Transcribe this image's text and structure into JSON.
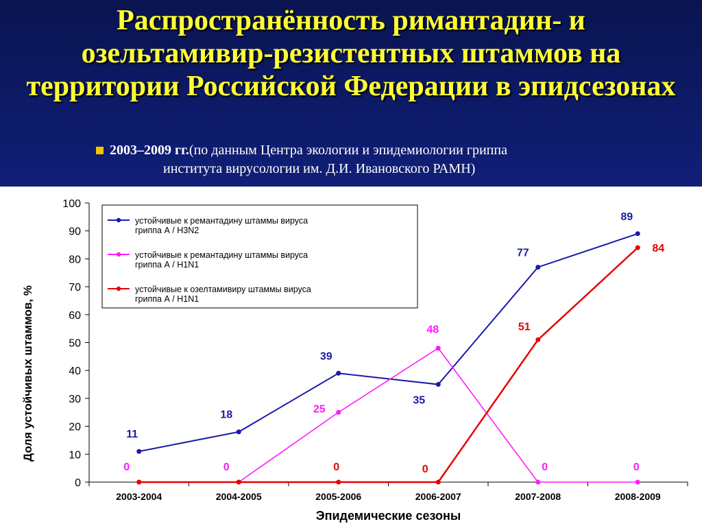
{
  "slide": {
    "title": "Распространённость римантадин- и озельтамивир-резистентных штаммов на территории Российской Федерации в эпидсезонах",
    "subtitle_bold": "2003–2009 гг.",
    "subtitle_line1": "(по данным Центра экологии и эпидемиологии гриппа",
    "subtitle_line2": "института вирусологии им. Д.И. Ивановского РАМН)"
  },
  "colors": {
    "header_bg": "#0d1a66",
    "title": "#ffff33",
    "bullet": "#f5c400"
  },
  "chart_data": {
    "type": "line",
    "xlabel": "Эпидемические сезоны",
    "ylabel": "Доля устойчивых штаммов, %",
    "ylim": [
      0,
      100
    ],
    "yticks": [
      0,
      10,
      20,
      30,
      40,
      50,
      60,
      70,
      80,
      90,
      100
    ],
    "grid": false,
    "legend_position": "top-left",
    "categories": [
      "2003-2004",
      "2004-2005",
      "2005-2006",
      "2006-2007",
      "2007-2008",
      "2008-2009"
    ],
    "series": [
      {
        "name": "устойчивые к ремантадину штаммы вируса гриппа А / H3N2",
        "legend_lines": [
          "устойчивые к ремантадину штаммы вируса",
          "гриппа А / H3N2"
        ],
        "color": "#1a1aa6",
        "values": [
          11,
          18,
          39,
          35,
          77,
          89
        ]
      },
      {
        "name": "устойчивые к ремантадину штаммы вируса гриппа А / H1N1",
        "legend_lines": [
          "устойчивые к ремантадину штаммы вируса",
          "гриппа А / H1N1"
        ],
        "color": "#ff1aff",
        "values": [
          0,
          0,
          25,
          48,
          0,
          0
        ]
      },
      {
        "name": "устойчивые к озелтамивиру штаммы вируса гриппа А / H1N1",
        "legend_lines": [
          "устойчивые к озелтамивиру штаммы вируса",
          "гриппа А / H1N1"
        ],
        "color": "#e60000",
        "values": [
          0,
          0,
          0,
          0,
          51,
          84
        ]
      }
    ],
    "data_labels": [
      {
        "text": "11",
        "series": 0,
        "index": 0
      },
      {
        "text": "18",
        "series": 0,
        "index": 1
      },
      {
        "text": "39",
        "series": 0,
        "index": 2
      },
      {
        "text": "35",
        "series": 0,
        "index": 3
      },
      {
        "text": "77",
        "series": 0,
        "index": 4
      },
      {
        "text": "89",
        "series": 0,
        "index": 5
      },
      {
        "text": "0",
        "series": 1,
        "index": 0
      },
      {
        "text": "0",
        "series": 1,
        "index": 1
      },
      {
        "text": "25",
        "series": 1,
        "index": 2
      },
      {
        "text": "48",
        "series": 1,
        "index": 3
      },
      {
        "text": "0",
        "series": 1,
        "index": 4
      },
      {
        "text": "0",
        "series": 1,
        "index": 5
      },
      {
        "text": "0",
        "series": 2,
        "index": 2
      },
      {
        "text": "0",
        "series": 2,
        "index": 3
      },
      {
        "text": "51",
        "series": 2,
        "index": 4
      },
      {
        "text": "84",
        "series": 2,
        "index": 5
      }
    ]
  }
}
